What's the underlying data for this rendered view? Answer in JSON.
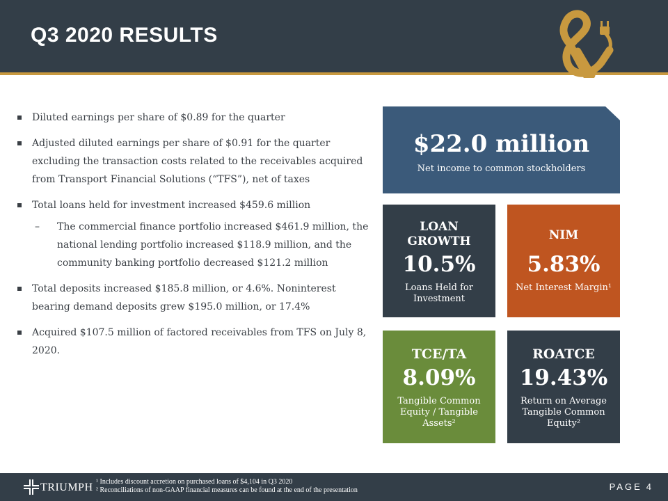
{
  "header": {
    "title": "Q3 2020 RESULTS",
    "accent_color": "#c8993f",
    "background_color": "#333e48",
    "logo_icon": "ampersand-plug-icon"
  },
  "bullets": [
    {
      "text": "Diluted earnings per share of $0.89 for the quarter"
    },
    {
      "text": "Adjusted diluted earnings per share of $0.91 for the quarter excluding the transaction costs related to the receivables acquired from Transport Financial Solutions (“TFS”), net of taxes"
    },
    {
      "text": "Total loans held for investment increased $459.6 million",
      "sub": "The commercial finance portfolio increased $461.9 million, the national lending portfolio increased $118.9 million, and the community banking portfolio decreased $121.2 million"
    },
    {
      "text": "Total deposits increased $185.8 million, or 4.6%. Noninterest bearing demand deposits grew $195.0 million, or 17.4%"
    },
    {
      "text": "Acquired $107.5 million of factored receivables from TFS on July 8, 2020."
    }
  ],
  "hero": {
    "value": "$22.0 million",
    "label": "Net income to common stockholders",
    "color": "#3b5a7a"
  },
  "tiles": [
    {
      "head": "LOAN GROWTH",
      "value": "10.5%",
      "sub": "Loans Held for Investment",
      "color": "#333e48"
    },
    {
      "head": "NIM",
      "value": "5.83%",
      "sub": "Net Interest Margin¹",
      "color": "#bf5520"
    },
    {
      "head": "TCE/TA",
      "value": "8.09%",
      "sub": "Tangible Common Equity / Tangible Assets²",
      "color": "#6a8c3b"
    },
    {
      "head": "ROATCE",
      "value": "19.43%",
      "sub": "Return on Average Tangible Common Equity²",
      "color": "#333e48"
    }
  ],
  "footer": {
    "brand": "TRIUMPH",
    "logo_icon": "triumph-cross-icon",
    "footnote1": "¹ Includes discount accretion on purchased loans of $4,104 in Q3 2020",
    "footnote2": "² Reconciliations of non-GAAP financial measures can be found at the end of the presentation",
    "page_label": "PAGE",
    "page_number": "4"
  }
}
